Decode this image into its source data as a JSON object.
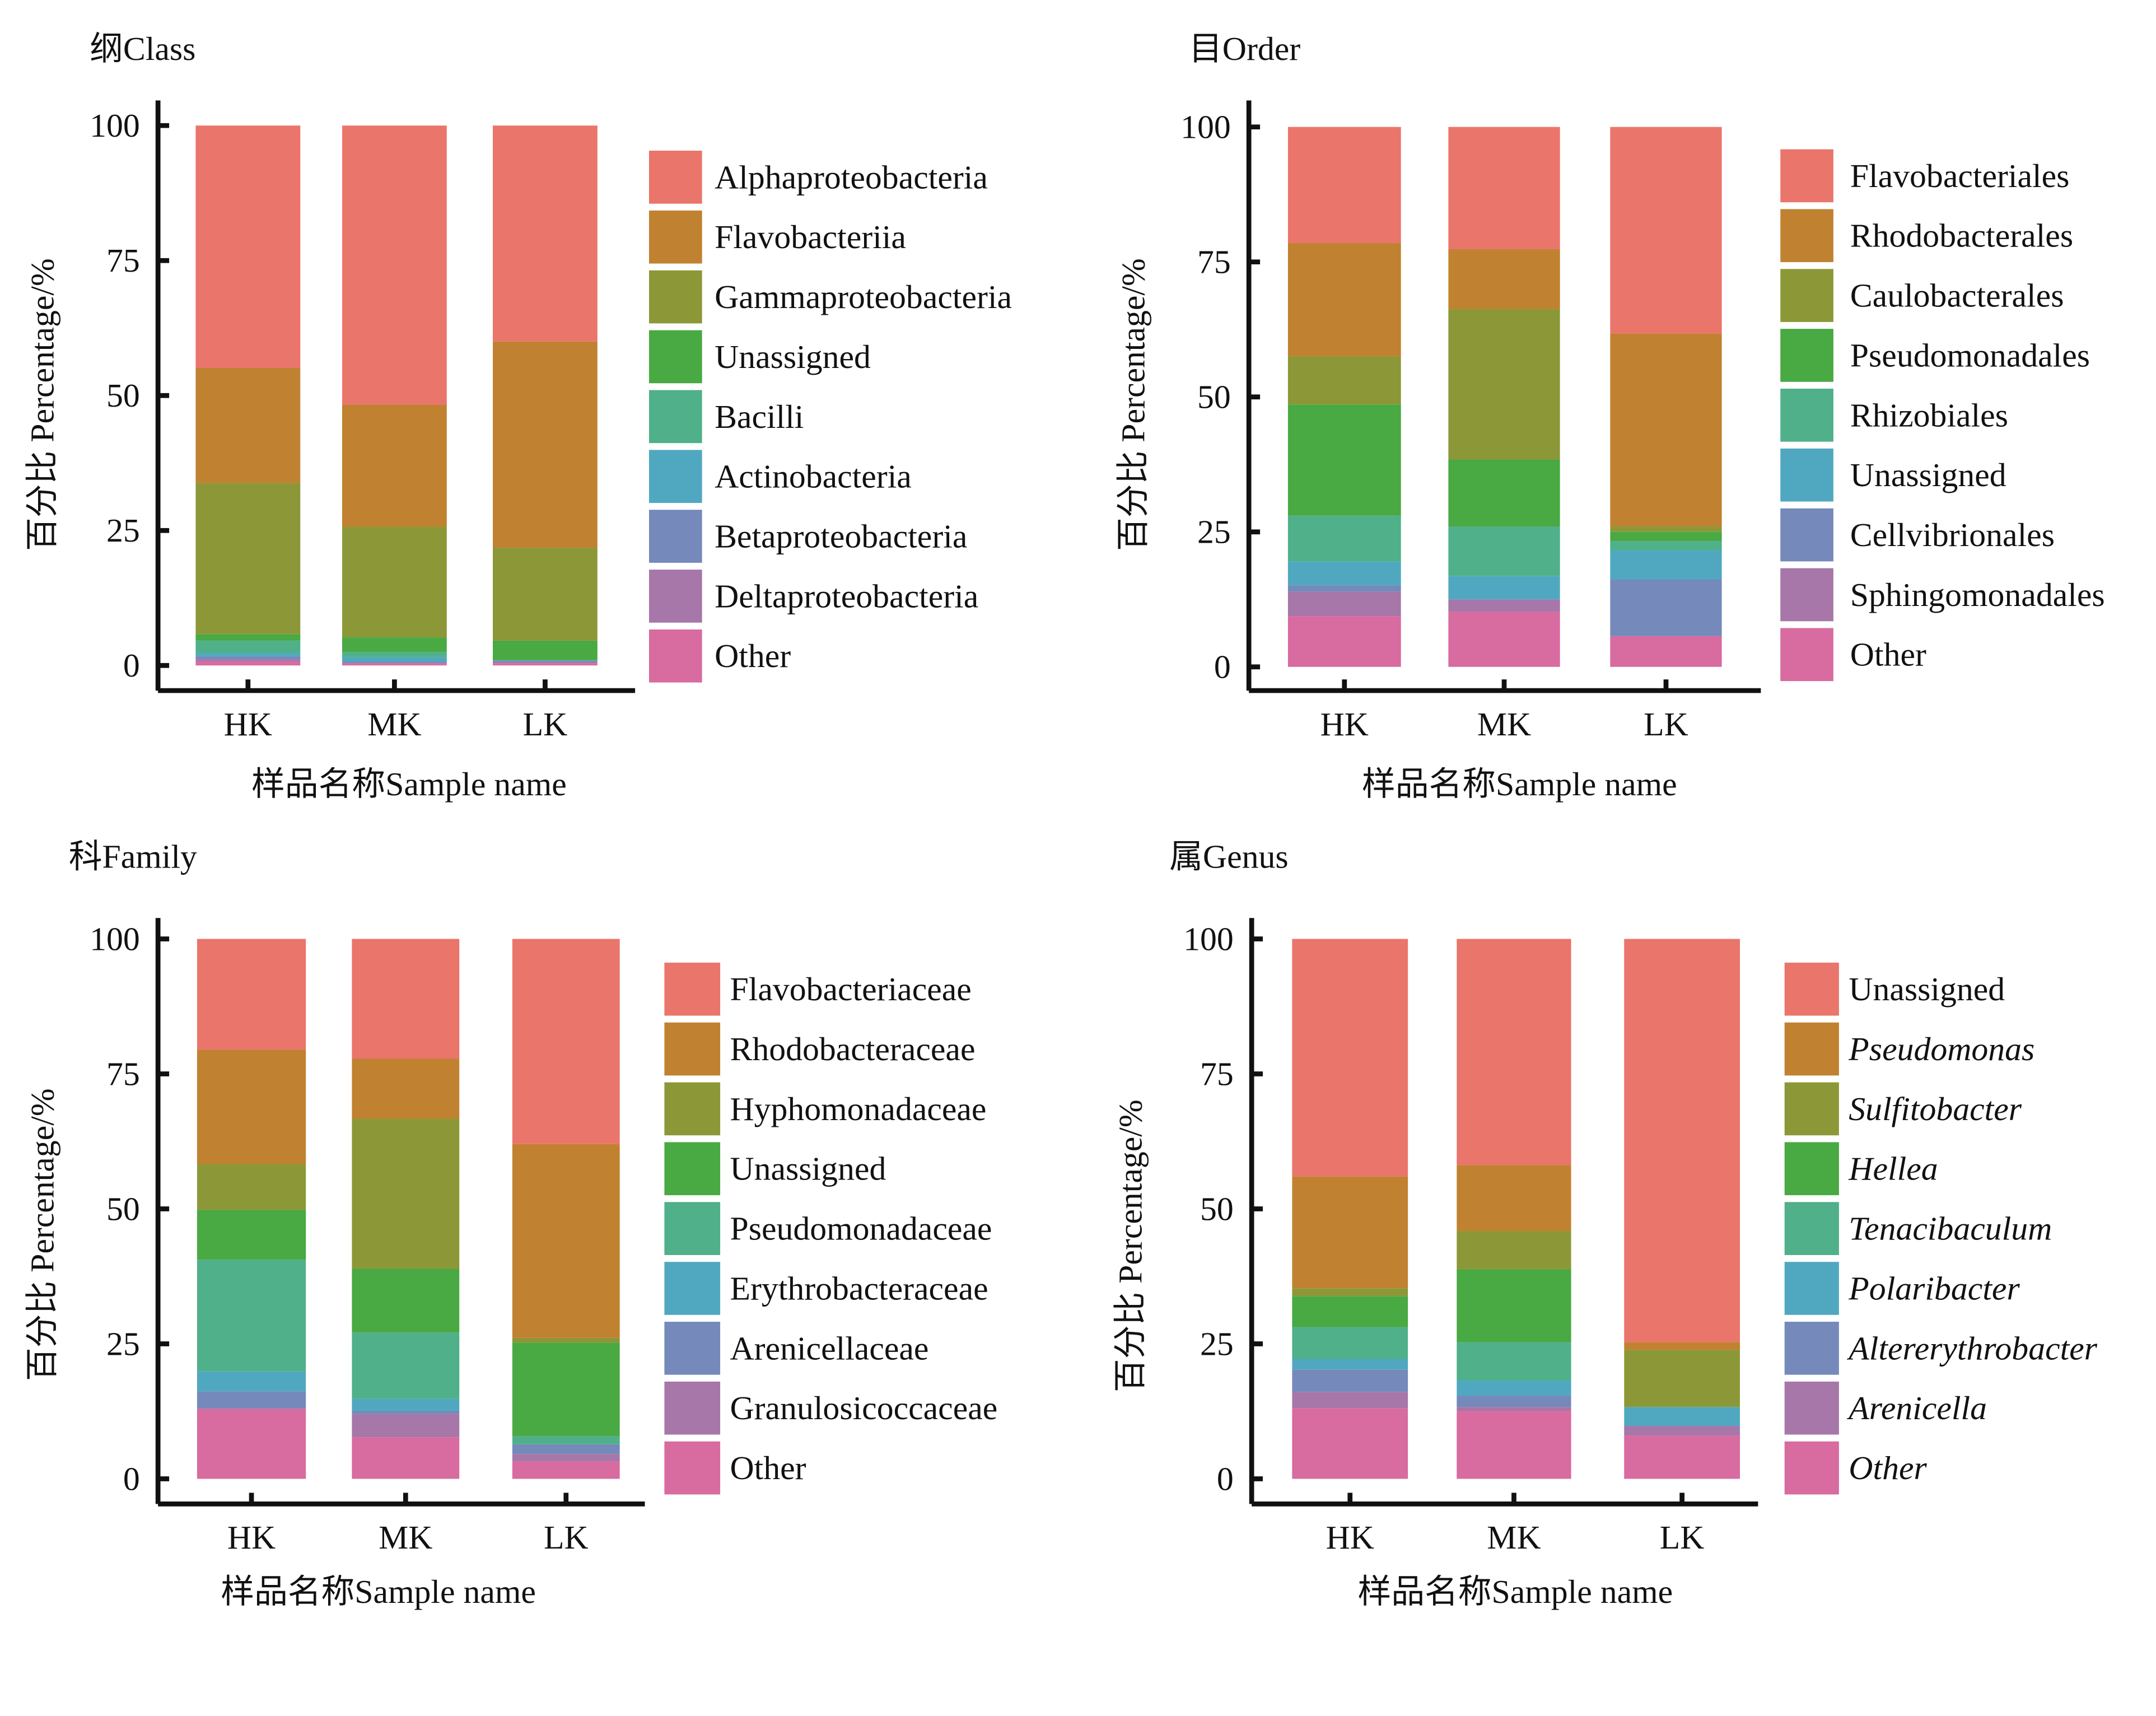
{
  "colors": [
    "#EA756B",
    "#C08230",
    "#8C9838",
    "#49A943",
    "#4FB08A",
    "#50A8C0",
    "#7589BB",
    "#A677A8",
    "#D86B9F"
  ],
  "chart_data": [
    {
      "id": "class",
      "type": "bar",
      "stacked": true,
      "title": "纲Class",
      "xlabel": "样品名称Sample name",
      "ylabel": "百分比 Percentage/%",
      "ylim": [
        0,
        100
      ],
      "yticks": [
        "0",
        "25",
        "50",
        "75",
        "100"
      ],
      "categories": [
        "HK",
        "MK",
        "LK"
      ],
      "legend_position": "right",
      "legend_italic": false,
      "series": [
        {
          "name": "Other",
          "values": [
            0.8,
            0.3,
            0.4
          ]
        },
        {
          "name": "Deltaproteobacteria",
          "values": [
            0.3,
            0.2,
            0.3
          ]
        },
        {
          "name": "Betaproteobacteria",
          "values": [
            0.6,
            0.2,
            0.1
          ]
        },
        {
          "name": "Actinobacteria",
          "values": [
            0.6,
            0.8,
            0.1
          ]
        },
        {
          "name": "Bacilli",
          "values": [
            2.3,
            1.0,
            0.1
          ]
        },
        {
          "name": "Unassigned",
          "values": [
            1.2,
            2.7,
            3.6
          ]
        },
        {
          "name": "Gammaproteobacteria",
          "values": [
            28.0,
            20.5,
            17.2
          ]
        },
        {
          "name": "Flavobacteriia",
          "values": [
            21.3,
            22.6,
            38.2
          ]
        },
        {
          "name": "Alphaproteobacteria",
          "values": [
            44.9,
            51.7,
            40.0
          ]
        }
      ]
    },
    {
      "id": "order",
      "type": "bar",
      "stacked": true,
      "title": "目Order",
      "xlabel": "样品名称Sample name",
      "ylabel": "百分比 Percentage/%",
      "ylim": [
        0,
        100
      ],
      "yticks": [
        "0",
        "25",
        "50",
        "75",
        "100"
      ],
      "categories": [
        "HK",
        "MK",
        "LK"
      ],
      "legend_position": "right",
      "legend_italic": false,
      "series": [
        {
          "name": "Other",
          "values": [
            9.4,
            10.2,
            5.7
          ]
        },
        {
          "name": "Sphingomonadales",
          "values": [
            4.5,
            2.3,
            0.0
          ]
        },
        {
          "name": "Cellvibrionales",
          "values": [
            1.2,
            0.0,
            10.5
          ]
        },
        {
          "name": "Unassigned",
          "values": [
            4.4,
            4.3,
            5.4
          ]
        },
        {
          "name": "Rhizobiales",
          "values": [
            8.5,
            9.2,
            1.7
          ]
        },
        {
          "name": "Pseudomonadales",
          "values": [
            20.6,
            12.4,
            1.7
          ]
        },
        {
          "name": "Caulobacterales",
          "values": [
            8.9,
            27.9,
            1.0
          ]
        },
        {
          "name": "Rhodobacterales",
          "values": [
            21.0,
            11.1,
            35.7
          ]
        },
        {
          "name": "Flavobacteriales",
          "values": [
            21.5,
            22.6,
            38.3
          ]
        }
      ]
    },
    {
      "id": "family",
      "type": "bar",
      "stacked": true,
      "title": "科Family",
      "xlabel": "样品名称Sample name",
      "ylabel": "百分比 Percentage/%",
      "ylim": [
        0,
        100
      ],
      "yticks": [
        "0",
        "25",
        "50",
        "75",
        "100"
      ],
      "categories": [
        "HK",
        "MK",
        "LK"
      ],
      "legend_position": "right",
      "legend_italic": false,
      "series": [
        {
          "name": "Other",
          "values": [
            13.0,
            7.7,
            3.2
          ]
        },
        {
          "name": "Granulosicoccaceae",
          "values": [
            0.0,
            4.3,
            1.4
          ]
        },
        {
          "name": "Arenicellaceae",
          "values": [
            3.2,
            0.6,
            1.8
          ]
        },
        {
          "name": "Erythrobacteraceae",
          "values": [
            3.7,
            2.2,
            0.0
          ]
        },
        {
          "name": "Pseudomonadaceae",
          "values": [
            20.7,
            12.3,
            1.5
          ]
        },
        {
          "name": "Unassigned",
          "values": [
            9.2,
            11.8,
            17.3
          ]
        },
        {
          "name": "Hyphomonadaceae",
          "values": [
            8.5,
            27.8,
            0.9
          ]
        },
        {
          "name": "Rhodobacteraceae",
          "values": [
            21.2,
            11.1,
            35.9
          ]
        },
        {
          "name": "Flavobacteriaceae",
          "values": [
            20.5,
            22.2,
            38.0
          ]
        }
      ]
    },
    {
      "id": "genus",
      "type": "bar",
      "stacked": true,
      "title": "属Genus",
      "xlabel": "样品名称Sample name",
      "ylabel": "百分比 Percentage/%",
      "ylim": [
        0,
        100
      ],
      "yticks": [
        "0",
        "25",
        "50",
        "75",
        "100"
      ],
      "categories": [
        "HK",
        "MK",
        "LK"
      ],
      "legend_position": "right",
      "legend_italic": true,
      "legend_italic_exceptions": [
        "Unassigned"
      ],
      "series": [
        {
          "name": "Other",
          "values": [
            13.1,
            12.6,
            8.0
          ]
        },
        {
          "name": "Arenicella",
          "values": [
            3.0,
            0.7,
            1.8
          ]
        },
        {
          "name": "Altererythrobacter",
          "values": [
            4.1,
            2.1,
            0.0
          ]
        },
        {
          "name": "Polaribacter",
          "values": [
            2.0,
            2.8,
            3.5
          ]
        },
        {
          "name": "Tenacibaculum",
          "values": [
            5.9,
            7.1,
            0.0
          ]
        },
        {
          "name": "Hellea",
          "values": [
            5.7,
            13.5,
            0.0
          ]
        },
        {
          "name": "Sulfitobacter",
          "values": [
            1.5,
            7.1,
            10.6
          ]
        },
        {
          "name": "Pseudomonas",
          "values": [
            20.7,
            12.2,
            1.4
          ]
        },
        {
          "name": "Unassigned",
          "values": [
            44.0,
            41.9,
            74.7
          ]
        }
      ]
    }
  ]
}
